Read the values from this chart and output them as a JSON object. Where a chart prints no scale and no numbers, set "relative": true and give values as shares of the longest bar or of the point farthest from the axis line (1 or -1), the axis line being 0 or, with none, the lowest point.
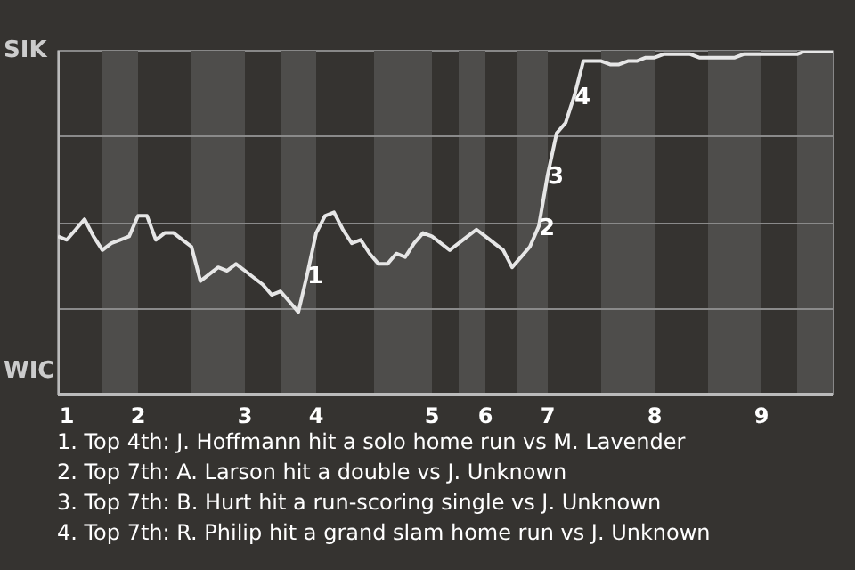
{
  "chart_data": {
    "type": "line",
    "relative": true,
    "categories": [
      null,
      "1",
      null,
      null,
      null,
      null,
      null,
      null,
      null,
      "2",
      null,
      null,
      null,
      null,
      null,
      null,
      null,
      null,
      null,
      null,
      null,
      "3",
      null,
      null,
      null,
      null,
      null,
      null,
      null,
      "4",
      null,
      null,
      null,
      null,
      null,
      null,
      null,
      null,
      null,
      null,
      null,
      null,
      "5",
      null,
      null,
      null,
      null,
      null,
      "6",
      null,
      null,
      null,
      null,
      null,
      null,
      "7",
      null,
      null,
      null,
      null,
      null,
      null,
      null,
      null,
      null,
      null,
      null,
      "8",
      null,
      null,
      null,
      null,
      null,
      null,
      null,
      null,
      null,
      null,
      null,
      "9",
      null,
      null,
      null,
      null,
      null,
      null,
      null,
      null
    ],
    "series": [
      {
        "color": "#e6e6e6",
        "values": [
          0.46,
          0.45,
          0.48,
          0.51,
          0.46,
          0.42,
          0.44,
          0.45,
          0.46,
          0.52,
          0.52,
          0.45,
          0.47,
          0.47,
          0.45,
          0.43,
          0.33,
          0.35,
          0.37,
          0.36,
          0.38,
          0.36,
          0.34,
          0.32,
          0.29,
          0.3,
          0.27,
          0.24,
          0.35,
          0.47,
          0.52,
          0.53,
          0.48,
          0.44,
          0.45,
          0.41,
          0.38,
          0.38,
          0.41,
          0.4,
          0.44,
          0.47,
          0.46,
          0.44,
          0.42,
          0.44,
          0.46,
          0.48,
          0.46,
          0.44,
          0.42,
          0.37,
          0.4,
          0.43,
          0.49,
          0.64,
          0.76,
          0.79,
          0.87,
          0.97,
          0.97,
          0.97,
          0.96,
          0.96,
          0.97,
          0.97,
          0.98,
          0.98,
          0.99,
          0.99,
          0.99,
          0.99,
          0.98,
          0.98,
          0.98,
          0.98,
          0.98,
          0.99,
          0.99,
          0.99,
          0.99,
          0.99,
          0.99,
          0.99,
          1.0,
          1.0,
          1.0,
          1.0
        ]
      }
    ],
    "grid": "y",
    "annotations": [
      "SIK",
      "WIC",
      {
        "text": "1",
        "y": 0.35
      },
      {
        "text": "2",
        "y": 0.49
      },
      {
        "text": "3",
        "y": 0.64
      },
      {
        "text": "4",
        "y": 0.87
      },
      "1. Top 4th: J. Hoffmann hit a solo home run vs M. Lavender",
      "2. Top 7th: A. Larson hit a double vs J. Unknown",
      "3. Top 7th: B. Hurt hit a run-scoring single vs J. Unknown",
      "4. Top 7th: R. Philip hit a grand slam home run vs J. Unknown"
    ]
  }
}
